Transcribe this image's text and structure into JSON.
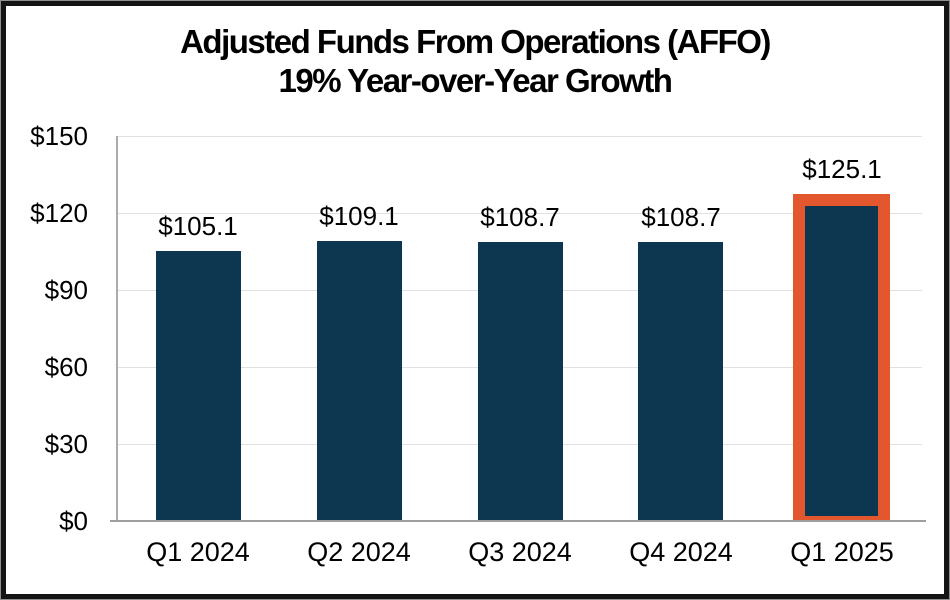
{
  "chart_data": {
    "type": "bar",
    "title": "Adjusted Funds From Operations (AFFO)",
    "subtitle": "19% Year-over-Year Growth",
    "categories": [
      "Q1 2024",
      "Q2 2024",
      "Q3 2024",
      "Q4 2024",
      "Q1 2025"
    ],
    "values": [
      105.1,
      109.1,
      108.7,
      108.7,
      125.1
    ],
    "data_labels": [
      "$105.1",
      "$109.1",
      "$108.7",
      "$108.7",
      "$125.1"
    ],
    "y_axis": {
      "tick_labels": [
        "$150",
        "$120",
        "$90",
        "$60",
        "$30",
        "$0"
      ],
      "tick_values": [
        150,
        120,
        90,
        60,
        30,
        0
      ],
      "min": 0,
      "max": 150
    },
    "grid": true,
    "legend": "none",
    "highlight": {
      "index": 4,
      "border_color": "#E2572E"
    },
    "colors": {
      "bar": "#0D3750",
      "highlight_border": "#E2572E",
      "gridline": "#E0E0E0",
      "y_axis_line": "#ABABAB",
      "x_axis_line": "#9E9E9E",
      "text": "#000000",
      "frame_black": "#141414",
      "frame_gray": "#8f8f8f"
    }
  }
}
